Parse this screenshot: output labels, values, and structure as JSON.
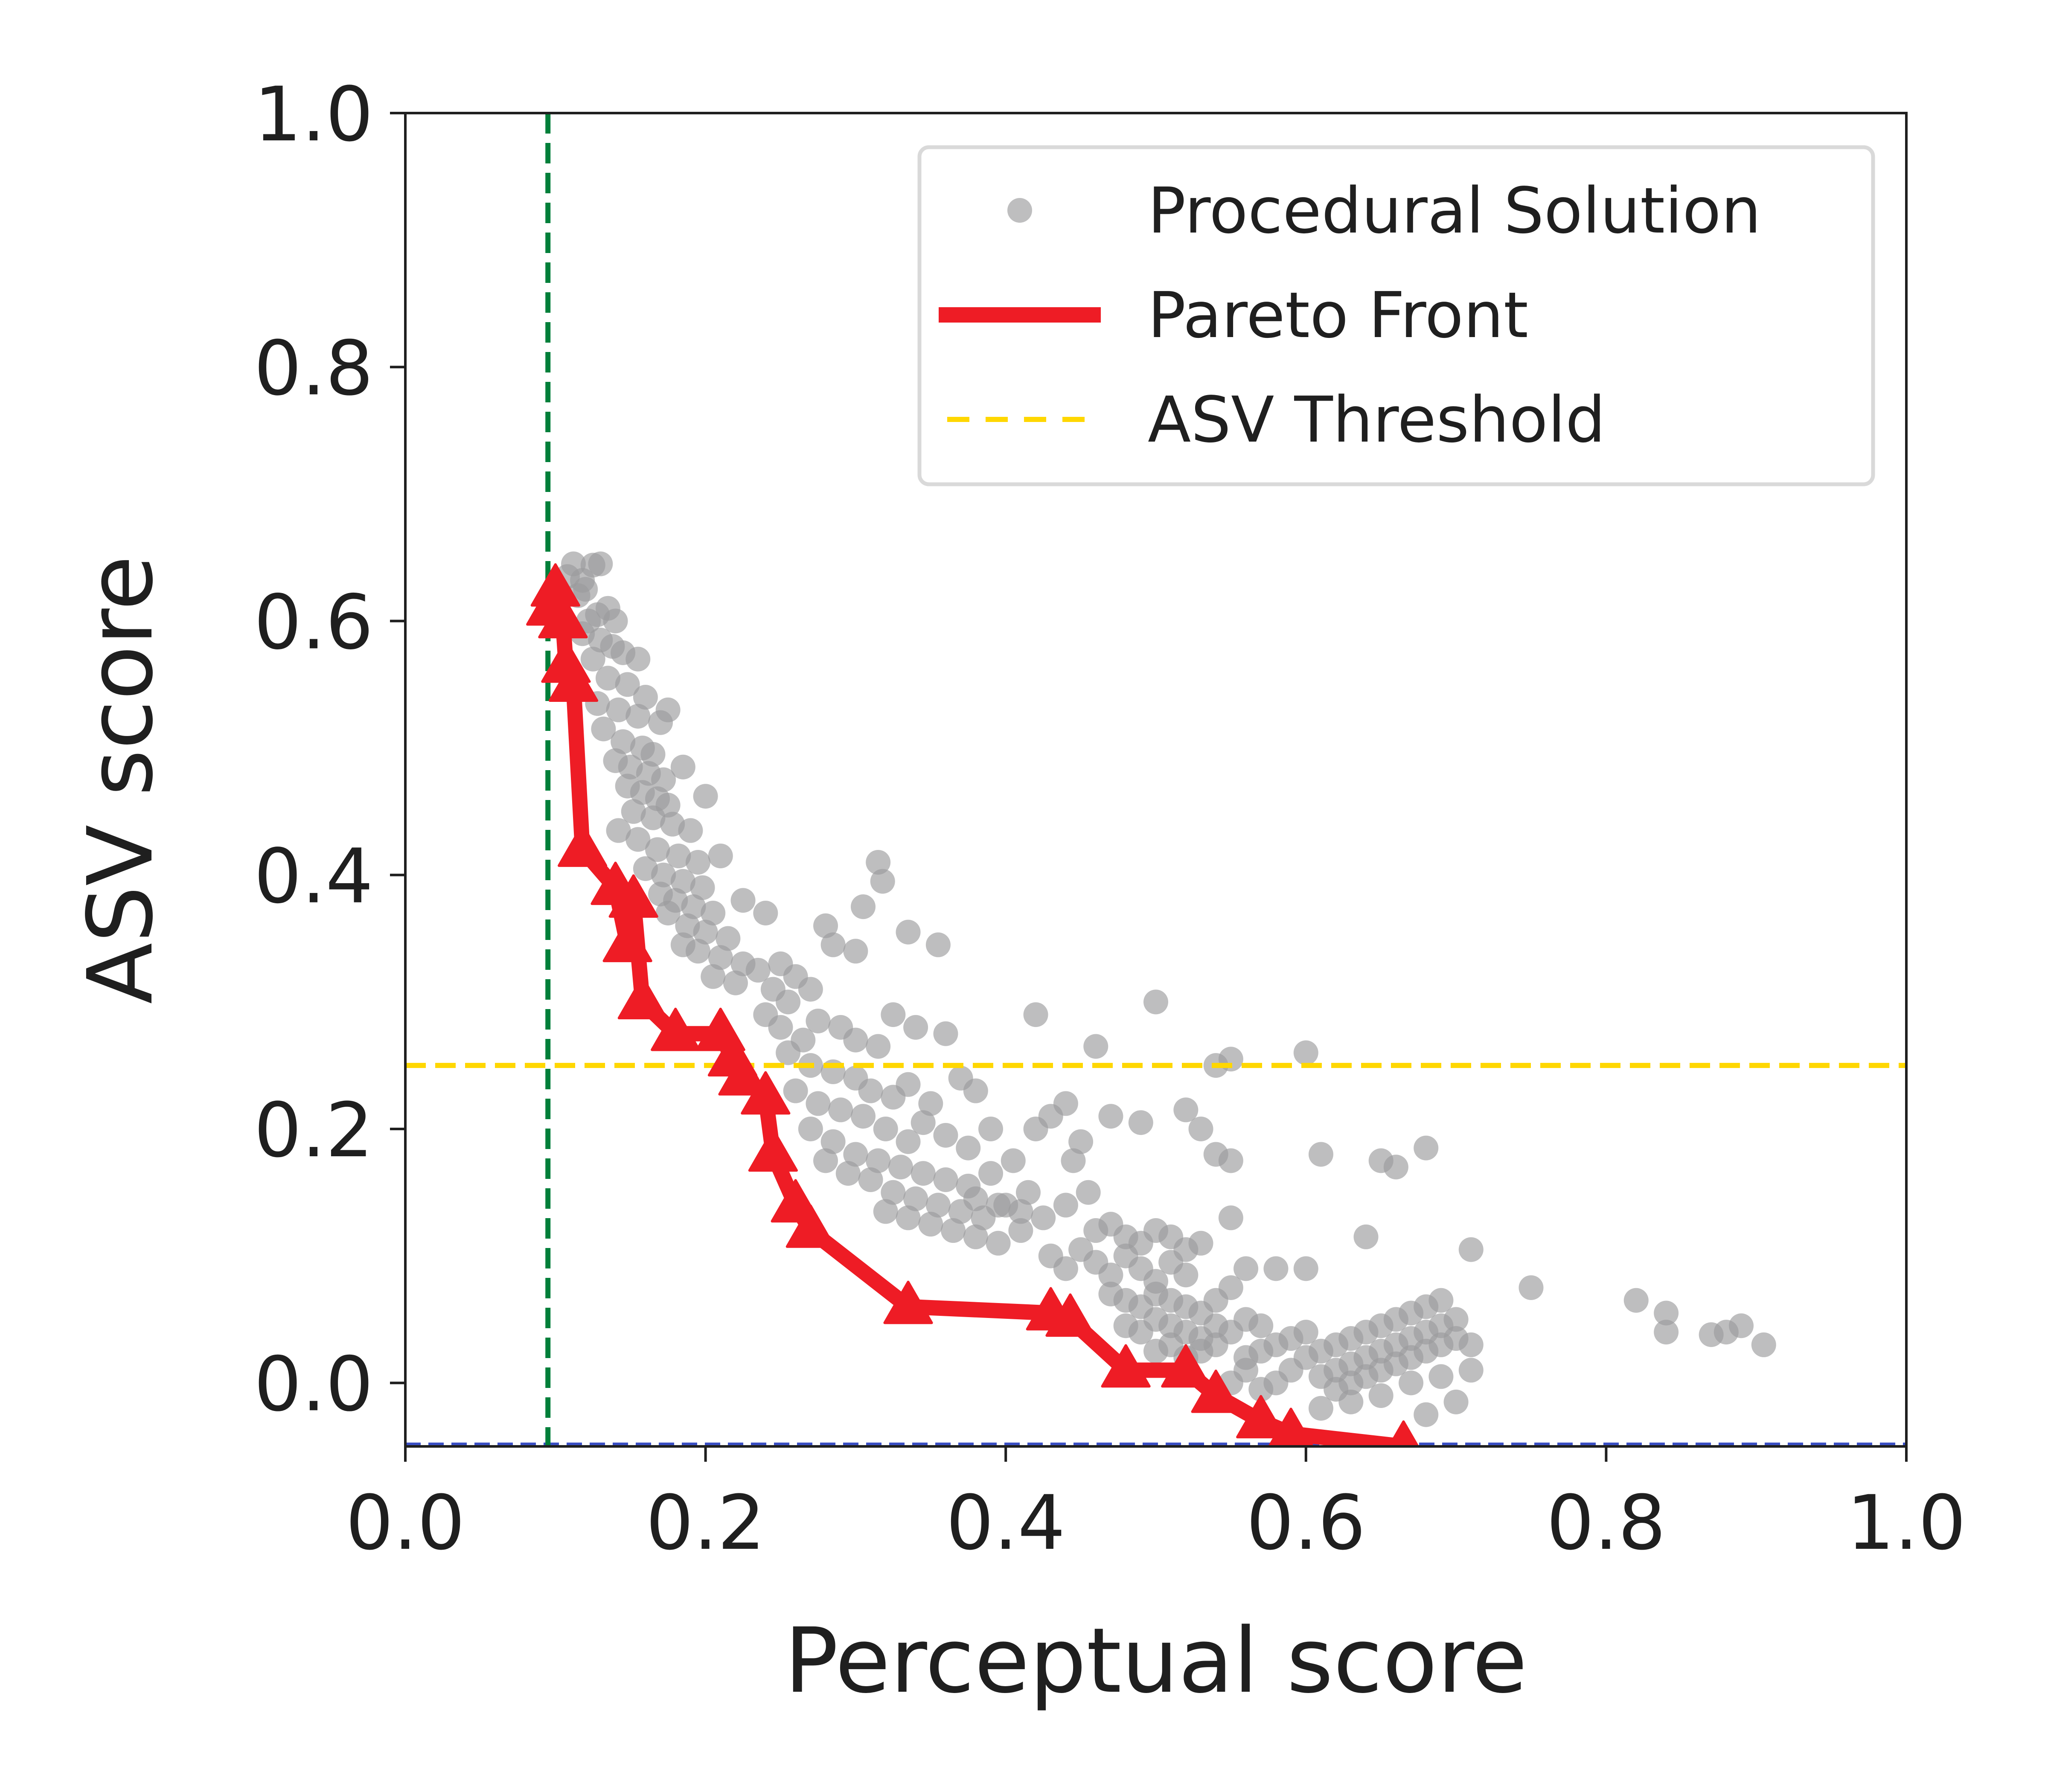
{
  "chart_data": {
    "type": "scatter",
    "xlabel": "Perceptual score",
    "ylabel": "ASV score",
    "xlim": [
      0.0,
      1.0
    ],
    "ylim": [
      -0.05,
      1.0
    ],
    "x_ticks": [
      "0.0",
      "0.2",
      "0.4",
      "0.6",
      "0.8",
      "1.0"
    ],
    "x_tick_values": [
      0.0,
      0.2,
      0.4,
      0.6,
      0.8,
      1.0
    ],
    "y_ticks": [
      "0.0",
      "0.2",
      "0.4",
      "0.6",
      "0.8",
      "1.0"
    ],
    "y_tick_values": [
      0.0,
      0.2,
      0.4,
      0.6,
      0.8,
      1.0
    ],
    "grid": false,
    "legend_position": "top-right",
    "legend": [
      {
        "label": "Procedural Solution",
        "kind": "marker",
        "color": "#9b9b9d"
      },
      {
        "label": "Pareto Front",
        "kind": "line",
        "color": "#ee1c25"
      },
      {
        "label": "ASV Threshold",
        "kind": "dashed",
        "color": "#ffd700"
      }
    ],
    "colors": {
      "scatter": "#9b9b9d",
      "pareto": "#ee1c25",
      "asv_threshold": "#ffd700",
      "perceptual_threshold": "#007f3a",
      "baseline": "#3a4fc4"
    },
    "asv_threshold": 0.25,
    "perceptual_threshold": 0.095,
    "baseline_y": -0.048,
    "pareto_front": {
      "name": "Pareto Front",
      "x": [
        0.097,
        0.1,
        0.105,
        0.107,
        0.112,
        0.118,
        0.14,
        0.148,
        0.152,
        0.158,
        0.18,
        0.21,
        0.218,
        0.225,
        0.24,
        0.245,
        0.26,
        0.27,
        0.335,
        0.43,
        0.443,
        0.48,
        0.52,
        0.54,
        0.57,
        0.59,
        0.665
      ],
      "y": [
        0.61,
        0.625,
        0.6,
        0.565,
        0.55,
        0.42,
        0.39,
        0.345,
        0.38,
        0.3,
        0.275,
        0.275,
        0.255,
        0.24,
        0.225,
        0.18,
        0.14,
        0.12,
        0.06,
        0.055,
        0.05,
        0.01,
        0.01,
        -0.01,
        -0.03,
        -0.04,
        -0.05
      ]
    },
    "scatter_series": {
      "name": "Procedural Solution",
      "points": [
        [
          0.108,
          0.635
        ],
        [
          0.112,
          0.645
        ],
        [
          0.118,
          0.632
        ],
        [
          0.125,
          0.644
        ],
        [
          0.13,
          0.645
        ],
        [
          0.12,
          0.625
        ],
        [
          0.115,
          0.62
        ],
        [
          0.128,
          0.605
        ],
        [
          0.135,
          0.61
        ],
        [
          0.14,
          0.6
        ],
        [
          0.122,
          0.6
        ],
        [
          0.118,
          0.59
        ],
        [
          0.13,
          0.585
        ],
        [
          0.138,
          0.58
        ],
        [
          0.145,
          0.575
        ],
        [
          0.155,
          0.57
        ],
        [
          0.125,
          0.57
        ],
        [
          0.135,
          0.555
        ],
        [
          0.148,
          0.55
        ],
        [
          0.16,
          0.54
        ],
        [
          0.128,
          0.535
        ],
        [
          0.142,
          0.53
        ],
        [
          0.155,
          0.525
        ],
        [
          0.17,
          0.52
        ],
        [
          0.175,
          0.53
        ],
        [
          0.132,
          0.515
        ],
        [
          0.145,
          0.505
        ],
        [
          0.158,
          0.5
        ],
        [
          0.165,
          0.495
        ],
        [
          0.14,
          0.49
        ],
        [
          0.15,
          0.485
        ],
        [
          0.162,
          0.48
        ],
        [
          0.172,
          0.475
        ],
        [
          0.185,
          0.485
        ],
        [
          0.148,
          0.47
        ],
        [
          0.158,
          0.465
        ],
        [
          0.168,
          0.46
        ],
        [
          0.175,
          0.455
        ],
        [
          0.2,
          0.462
        ],
        [
          0.152,
          0.45
        ],
        [
          0.165,
          0.445
        ],
        [
          0.178,
          0.44
        ],
        [
          0.19,
          0.435
        ],
        [
          0.142,
          0.435
        ],
        [
          0.155,
          0.428
        ],
        [
          0.168,
          0.42
        ],
        [
          0.182,
          0.415
        ],
        [
          0.195,
          0.41
        ],
        [
          0.21,
          0.415
        ],
        [
          0.16,
          0.405
        ],
        [
          0.172,
          0.4
        ],
        [
          0.185,
          0.395
        ],
        [
          0.198,
          0.39
        ],
        [
          0.17,
          0.385
        ],
        [
          0.18,
          0.38
        ],
        [
          0.192,
          0.375
        ],
        [
          0.205,
          0.37
        ],
        [
          0.225,
          0.38
        ],
        [
          0.175,
          0.37
        ],
        [
          0.188,
          0.36
        ],
        [
          0.2,
          0.355
        ],
        [
          0.215,
          0.35
        ],
        [
          0.24,
          0.37
        ],
        [
          0.185,
          0.345
        ],
        [
          0.195,
          0.34
        ],
        [
          0.21,
          0.335
        ],
        [
          0.225,
          0.33
        ],
        [
          0.205,
          0.32
        ],
        [
          0.22,
          0.315
        ],
        [
          0.235,
          0.325
        ],
        [
          0.25,
          0.33
        ],
        [
          0.26,
          0.32
        ],
        [
          0.245,
          0.31
        ],
        [
          0.255,
          0.3
        ],
        [
          0.27,
          0.31
        ],
        [
          0.28,
          0.36
        ],
        [
          0.285,
          0.345
        ],
        [
          0.3,
          0.34
        ],
        [
          0.315,
          0.41
        ],
        [
          0.318,
          0.395
        ],
        [
          0.305,
          0.375
        ],
        [
          0.335,
          0.355
        ],
        [
          0.355,
          0.345
        ],
        [
          0.24,
          0.29
        ],
        [
          0.25,
          0.28
        ],
        [
          0.265,
          0.27
        ],
        [
          0.275,
          0.285
        ],
        [
          0.29,
          0.28
        ],
        [
          0.3,
          0.27
        ],
        [
          0.315,
          0.265
        ],
        [
          0.325,
          0.29
        ],
        [
          0.34,
          0.28
        ],
        [
          0.36,
          0.275
        ],
        [
          0.255,
          0.26
        ],
        [
          0.27,
          0.25
        ],
        [
          0.285,
          0.245
        ],
        [
          0.3,
          0.24
        ],
        [
          0.31,
          0.23
        ],
        [
          0.325,
          0.225
        ],
        [
          0.335,
          0.235
        ],
        [
          0.35,
          0.22
        ],
        [
          0.37,
          0.24
        ],
        [
          0.38,
          0.23
        ],
        [
          0.26,
          0.23
        ],
        [
          0.275,
          0.22
        ],
        [
          0.29,
          0.215
        ],
        [
          0.305,
          0.21
        ],
        [
          0.32,
          0.2
        ],
        [
          0.335,
          0.19
        ],
        [
          0.345,
          0.205
        ],
        [
          0.36,
          0.195
        ],
        [
          0.375,
          0.185
        ],
        [
          0.39,
          0.2
        ],
        [
          0.27,
          0.2
        ],
        [
          0.285,
          0.19
        ],
        [
          0.3,
          0.18
        ],
        [
          0.315,
          0.175
        ],
        [
          0.33,
          0.17
        ],
        [
          0.345,
          0.165
        ],
        [
          0.36,
          0.16
        ],
        [
          0.375,
          0.155
        ],
        [
          0.39,
          0.165
        ],
        [
          0.405,
          0.175
        ],
        [
          0.28,
          0.175
        ],
        [
          0.295,
          0.165
        ],
        [
          0.31,
          0.16
        ],
        [
          0.325,
          0.15
        ],
        [
          0.34,
          0.145
        ],
        [
          0.355,
          0.14
        ],
        [
          0.37,
          0.135
        ],
        [
          0.385,
          0.13
        ],
        [
          0.4,
          0.14
        ],
        [
          0.415,
          0.15
        ],
        [
          0.32,
          0.135
        ],
        [
          0.335,
          0.13
        ],
        [
          0.35,
          0.125
        ],
        [
          0.365,
          0.12
        ],
        [
          0.38,
          0.115
        ],
        [
          0.395,
          0.11
        ],
        [
          0.41,
          0.12
        ],
        [
          0.425,
          0.13
        ],
        [
          0.44,
          0.14
        ],
        [
          0.455,
          0.15
        ],
        [
          0.38,
          0.145
        ],
        [
          0.395,
          0.14
        ],
        [
          0.41,
          0.135
        ],
        [
          0.42,
          0.2
        ],
        [
          0.43,
          0.21
        ],
        [
          0.44,
          0.22
        ],
        [
          0.42,
          0.29
        ],
        [
          0.46,
          0.265
        ],
        [
          0.5,
          0.3
        ],
        [
          0.47,
          0.21
        ],
        [
          0.49,
          0.205
        ],
        [
          0.445,
          0.175
        ],
        [
          0.45,
          0.19
        ],
        [
          0.43,
          0.1
        ],
        [
          0.44,
          0.09
        ],
        [
          0.45,
          0.105
        ],
        [
          0.46,
          0.095
        ],
        [
          0.47,
          0.085
        ],
        [
          0.48,
          0.1
        ],
        [
          0.49,
          0.09
        ],
        [
          0.5,
          0.08
        ],
        [
          0.51,
          0.095
        ],
        [
          0.52,
          0.085
        ],
        [
          0.46,
          0.12
        ],
        [
          0.47,
          0.125
        ],
        [
          0.48,
          0.115
        ],
        [
          0.49,
          0.11
        ],
        [
          0.5,
          0.12
        ],
        [
          0.51,
          0.115
        ],
        [
          0.52,
          0.105
        ],
        [
          0.53,
          0.11
        ],
        [
          0.47,
          0.07
        ],
        [
          0.48,
          0.065
        ],
        [
          0.49,
          0.06
        ],
        [
          0.5,
          0.07
        ],
        [
          0.51,
          0.065
        ],
        [
          0.52,
          0.06
        ],
        [
          0.53,
          0.055
        ],
        [
          0.54,
          0.065
        ],
        [
          0.55,
          0.075
        ],
        [
          0.48,
          0.045
        ],
        [
          0.49,
          0.04
        ],
        [
          0.5,
          0.05
        ],
        [
          0.51,
          0.045
        ],
        [
          0.52,
          0.04
        ],
        [
          0.53,
          0.035
        ],
        [
          0.54,
          0.045
        ],
        [
          0.55,
          0.04
        ],
        [
          0.56,
          0.05
        ],
        [
          0.57,
          0.045
        ],
        [
          0.5,
          0.025
        ],
        [
          0.51,
          0.03
        ],
        [
          0.52,
          0.02
        ],
        [
          0.53,
          0.025
        ],
        [
          0.54,
          0.03
        ],
        [
          0.56,
          0.02
        ],
        [
          0.57,
          0.025
        ],
        [
          0.58,
          0.03
        ],
        [
          0.59,
          0.035
        ],
        [
          0.6,
          0.04
        ],
        [
          0.52,
          0.215
        ],
        [
          0.53,
          0.2
        ],
        [
          0.54,
          0.18
        ],
        [
          0.55,
          0.175
        ],
        [
          0.54,
          0.25
        ],
        [
          0.55,
          0.255
        ],
        [
          0.6,
          0.26
        ],
        [
          0.55,
          0.13
        ],
        [
          0.56,
          0.09
        ],
        [
          0.58,
          0.09
        ],
        [
          0.61,
          0.18
        ],
        [
          0.65,
          0.175
        ],
        [
          0.66,
          0.17
        ],
        [
          0.68,
          0.185
        ],
        [
          0.64,
          0.115
        ],
        [
          0.71,
          0.105
        ],
        [
          0.75,
          0.075
        ],
        [
          0.82,
          0.065
        ],
        [
          0.84,
          0.055
        ],
        [
          0.84,
          0.04
        ],
        [
          0.87,
          0.038
        ],
        [
          0.88,
          0.04
        ],
        [
          0.89,
          0.045
        ],
        [
          0.905,
          0.03
        ],
        [
          0.6,
          0.02
        ],
        [
          0.61,
          0.025
        ],
        [
          0.62,
          0.03
        ],
        [
          0.63,
          0.035
        ],
        [
          0.64,
          0.04
        ],
        [
          0.65,
          0.045
        ],
        [
          0.66,
          0.05
        ],
        [
          0.67,
          0.055
        ],
        [
          0.68,
          0.06
        ],
        [
          0.69,
          0.065
        ],
        [
          0.61,
          0.005
        ],
        [
          0.62,
          0.01
        ],
        [
          0.63,
          0.015
        ],
        [
          0.64,
          0.02
        ],
        [
          0.65,
          0.025
        ],
        [
          0.66,
          0.03
        ],
        [
          0.67,
          0.035
        ],
        [
          0.68,
          0.04
        ],
        [
          0.69,
          0.045
        ],
        [
          0.7,
          0.05
        ],
        [
          0.62,
          -0.005
        ],
        [
          0.63,
          0.0
        ],
        [
          0.64,
          0.005
        ],
        [
          0.65,
          0.01
        ],
        [
          0.66,
          0.015
        ],
        [
          0.67,
          0.02
        ],
        [
          0.68,
          0.025
        ],
        [
          0.69,
          0.03
        ],
        [
          0.7,
          0.035
        ],
        [
          0.71,
          0.03
        ],
        [
          0.63,
          -0.015
        ],
        [
          0.65,
          -0.01
        ],
        [
          0.67,
          0.0
        ],
        [
          0.69,
          0.005
        ],
        [
          0.71,
          0.01
        ],
        [
          0.68,
          -0.025
        ],
        [
          0.7,
          -0.015
        ],
        [
          0.6,
          0.09
        ],
        [
          0.58,
          0.0
        ],
        [
          0.59,
          0.01
        ],
        [
          0.57,
          -0.005
        ],
        [
          0.55,
          0.0
        ],
        [
          0.56,
          0.01
        ],
        [
          0.61,
          -0.02
        ]
      ]
    }
  }
}
